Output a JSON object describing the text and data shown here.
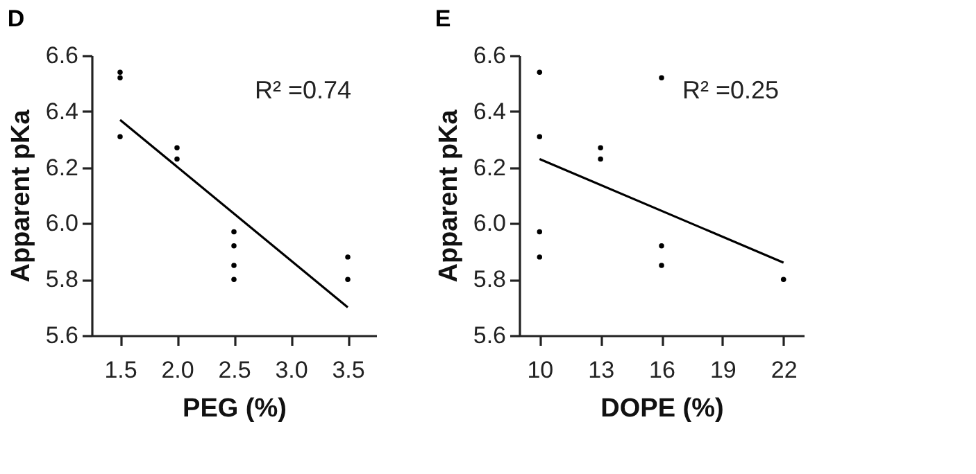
{
  "chart_data": [
    {
      "type": "scatter",
      "title": "D",
      "xlabel": "PEG (%)",
      "ylabel": "Apparent pKa",
      "xlim": [
        1.25,
        3.75
      ],
      "xticks": [
        1.5,
        {
          "value": 2,
          "label": "2.0"
        },
        2.5,
        {
          "value": 3,
          "label": "3.0"
        },
        3.5
      ],
      "ylim": [
        5.6,
        6.6
      ],
      "yticks": [
        5.6,
        5.8,
        {
          "value": 6,
          "label": "6.0"
        },
        6.2,
        6.4,
        6.6
      ],
      "grid": false,
      "annotations": [
        "R² =0.74"
      ],
      "series": [
        {
          "color": "#000000",
          "marker": "circle",
          "x": [
            1.5,
            1.5,
            1.5,
            2.0,
            2.0,
            2.5,
            2.5,
            2.5,
            2.5,
            3.5,
            3.5
          ],
          "values": [
            6.54,
            6.52,
            6.31,
            6.27,
            6.23,
            5.97,
            5.92,
            5.85,
            5.8,
            5.88,
            5.8
          ]
        },
        {
          "type": "line",
          "color": "#000000",
          "line_style": "solid",
          "x": [
            1.5,
            3.5
          ],
          "values": [
            6.37,
            5.7
          ]
        }
      ]
    },
    {
      "type": "scatter",
      "title": "E",
      "xlabel": "DOPE (%)",
      "ylabel": "Apparent pKa",
      "xlim": [
        9,
        23
      ],
      "xticks": [
        10,
        13,
        16,
        19,
        22
      ],
      "ylim": [
        5.6,
        6.6
      ],
      "yticks": [
        5.6,
        5.8,
        {
          "value": 6,
          "label": "6.0"
        },
        6.2,
        6.4,
        6.6
      ],
      "grid": false,
      "annotations": [
        "R² =0.25"
      ],
      "series": [
        {
          "color": "#000000",
          "marker": "circle",
          "x": [
            10,
            10,
            10,
            10,
            13,
            13,
            16,
            16,
            16,
            22
          ],
          "values": [
            6.54,
            6.31,
            5.97,
            5.88,
            6.27,
            6.23,
            6.52,
            5.92,
            5.85,
            5.8
          ]
        },
        {
          "type": "line",
          "color": "#000000",
          "line_style": "solid",
          "x": [
            10,
            22
          ],
          "values": [
            6.23,
            5.86
          ]
        }
      ]
    }
  ]
}
